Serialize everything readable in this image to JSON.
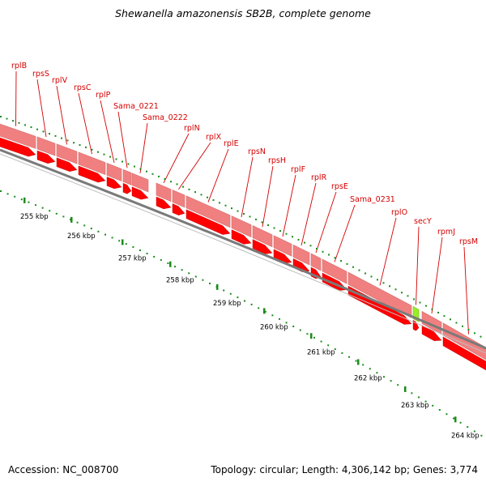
{
  "title": "Shewanella amazonensis SB2B, complete genome",
  "accession": "Accession: NC_008700",
  "summary": "Topology: circular; Length: 4,306,142 bp; Genes: 3,774",
  "colors": {
    "gene": "#ff0000",
    "cds_band": "#f08080",
    "highlight_band": "#99ee22",
    "tick": "#1a8c1a",
    "backbone": "#808080",
    "label": "#d40000"
  },
  "genes": [
    {
      "name": "rplB"
    },
    {
      "name": "rpsS"
    },
    {
      "name": "rplV"
    },
    {
      "name": "rpsC"
    },
    {
      "name": "rplP"
    },
    {
      "name": "Sama_0221"
    },
    {
      "name": "Sama_0222"
    },
    {
      "name": "rplN"
    },
    {
      "name": "rplX"
    },
    {
      "name": "rplE"
    },
    {
      "name": "rpsN"
    },
    {
      "name": "rpsH"
    },
    {
      "name": "rplF"
    },
    {
      "name": "rplR"
    },
    {
      "name": "rpsE"
    },
    {
      "name": "Sama_0231"
    },
    {
      "name": "rplO"
    },
    {
      "name": "secY",
      "highlight": true
    },
    {
      "name": "rpmJ"
    },
    {
      "name": "rpsM"
    }
  ],
  "ticks": [
    "255 kbp",
    "256 kbp",
    "257 kbp",
    "258 kbp",
    "259 kbp",
    "260 kbp",
    "261 kbp",
    "262 kbp",
    "263 kbp",
    "264 kbp"
  ]
}
